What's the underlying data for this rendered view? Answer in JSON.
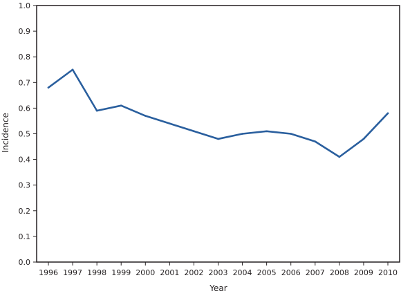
{
  "chart_data": {
    "type": "line",
    "title": "",
    "xlabel": "Year",
    "ylabel": "Incidence",
    "x": [
      "1996",
      "1997",
      "1998",
      "1999",
      "2000",
      "2001",
      "2002",
      "2003",
      "2004",
      "2005",
      "2006",
      "2007",
      "2008",
      "2009",
      "2010"
    ],
    "series": [
      {
        "values": [
          0.68,
          0.75,
          0.59,
          0.61,
          0.57,
          0.54,
          0.51,
          0.48,
          0.5,
          0.51,
          0.5,
          0.47,
          0.41,
          0.48,
          0.58
        ]
      }
    ],
    "ylim": [
      0,
      1.0
    ],
    "yticks": [
      "0.0",
      "0.1",
      "0.2",
      "0.3",
      "0.4",
      "0.5",
      "0.6",
      "0.7",
      "0.8",
      "0.9",
      "1.0"
    ],
    "grid": false,
    "legend": "none",
    "colors": {
      "line": "#2a5f9e",
      "axis": "#231f20"
    }
  }
}
